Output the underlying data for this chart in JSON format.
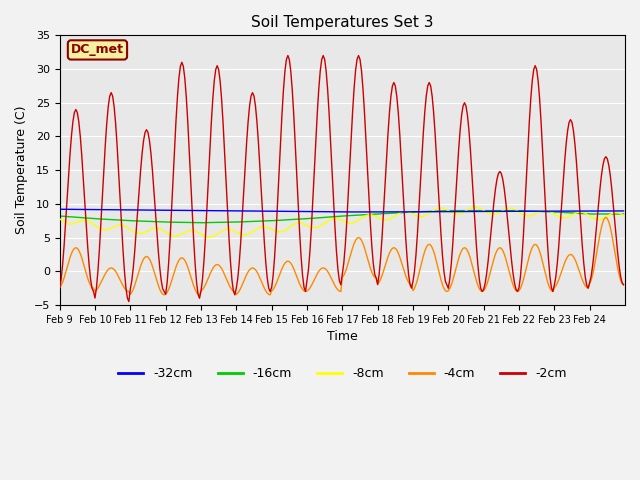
{
  "title": "Soil Temperatures Set 3",
  "xlabel": "Time",
  "ylabel": "Soil Temperature (C)",
  "ylim": [
    -5,
    35
  ],
  "yticks": [
    -5,
    0,
    5,
    10,
    15,
    20,
    25,
    30,
    35
  ],
  "xtick_labels": [
    "Feb 9",
    "Feb 10",
    "Feb 11",
    "Feb 12",
    "Feb 13",
    "Feb 14",
    "Feb 15",
    "Feb 16",
    "Feb 17",
    "Feb 18",
    "Feb 19",
    "Feb 20",
    "Feb 21",
    "Feb 22",
    "Feb 23",
    "Feb 24"
  ],
  "colors": {
    "-32cm": "#0000ff",
    "-16cm": "#00cc00",
    "-8cm": "#ffff00",
    "-4cm": "#ff8800",
    "-2cm": "#cc0000"
  },
  "dc_met_label": "DC_met",
  "plot_bg": "#e8e8e8",
  "fig_bg": "#f2f2f2",
  "grid_color": "#ffffff",
  "n_days": 16,
  "pph": 24,
  "T2_peaks": [
    24,
    26.5,
    21,
    31,
    30.5,
    26.5,
    32,
    32,
    32,
    28,
    28,
    25,
    14.8,
    30.5,
    22.5,
    17
  ],
  "T2_troughs": [
    -3,
    -4.5,
    -3,
    -4,
    -3.5,
    -3,
    -3,
    -2,
    -1,
    -2.5,
    -2,
    -3,
    -3,
    -3,
    -2.5,
    -2
  ],
  "T4_peaks": [
    3.5,
    0.5,
    2.2,
    2.0,
    1.0,
    0.5,
    1.5,
    0.5,
    5.0,
    3.5,
    4.0,
    3.5,
    3.5,
    4.0,
    2.5,
    8.0
  ],
  "T4_troughs": [
    -2.5,
    -3,
    -3.5,
    -3.5,
    -3,
    -3.5,
    -3,
    -3,
    -1,
    -2,
    -3,
    -3,
    -3,
    -3,
    -2.5,
    -2
  ],
  "T32_base": [
    9.2,
    9.15,
    9.1,
    9.05,
    9.0,
    8.95,
    8.9,
    8.85,
    8.8,
    8.8,
    8.82,
    8.85,
    8.88,
    8.9,
    8.92,
    8.95
  ],
  "T16_base": [
    8.2,
    7.8,
    7.5,
    7.3,
    7.2,
    7.3,
    7.5,
    7.8,
    8.2,
    8.5,
    8.8,
    9.0,
    9.0,
    9.0,
    8.8,
    8.5
  ],
  "T8_base": [
    7.8,
    6.8,
    6.2,
    5.8,
    5.5,
    5.8,
    6.2,
    6.8,
    7.5,
    8.0,
    8.5,
    9.0,
    9.0,
    8.8,
    8.5,
    8.2
  ]
}
